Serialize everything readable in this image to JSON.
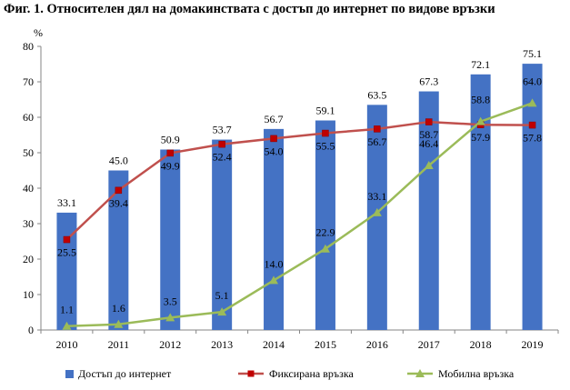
{
  "title": "Фиг. 1. Относителен дял на домакинствата с достъп до интернет по видове връзки",
  "chart_data": {
    "type": "bar",
    "ylabel": "%",
    "ylim": [
      0,
      80
    ],
    "yticks": [
      0,
      10,
      20,
      30,
      40,
      50,
      60,
      70,
      80
    ],
    "grid": false,
    "legend_position": "bottom",
    "categories": [
      "2010",
      "2011",
      "2012",
      "2013",
      "2014",
      "2015",
      "2016",
      "2017",
      "2018",
      "2019"
    ],
    "series": [
      {
        "name": "Достъп до интернет",
        "type": "bar",
        "color": "#4472C4",
        "values": [
          33.1,
          45.0,
          50.9,
          53.7,
          56.7,
          59.1,
          63.5,
          67.3,
          72.1,
          75.1
        ]
      },
      {
        "name": "Фиксирана връзка",
        "type": "line",
        "marker": "square",
        "color": "#C0504D",
        "values": [
          25.5,
          39.4,
          49.9,
          52.4,
          54.0,
          55.5,
          56.7,
          58.7,
          57.9,
          57.8
        ]
      },
      {
        "name": "Мобилна връзка",
        "type": "line",
        "marker": "triangle",
        "color": "#9BBB59",
        "values": [
          1.1,
          1.6,
          3.5,
          5.1,
          14.0,
          22.9,
          33.1,
          46.4,
          58.8,
          64.0
        ]
      }
    ]
  }
}
